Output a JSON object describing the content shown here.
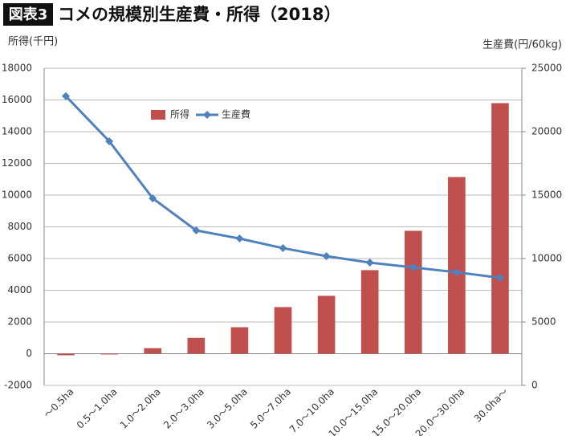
{
  "chart_data": {
    "type": "bar",
    "badge": "図表3",
    "title": "コメの規模別生産費・所得（2018）",
    "y_label": "所得(千円)",
    "y2_label": "生産費(円/60kg)",
    "categories": [
      "〜0.5ha",
      "0.5〜1.0ha",
      "1.0〜2.0ha",
      "2.0〜3.0ha",
      "3.0〜5.0ha",
      "5.0〜7.0ha",
      "7.0〜10.0ha",
      "10.0〜15.0ha",
      "15.0〜20.0ha",
      "20.0〜30.0ha",
      "30.0ha〜"
    ],
    "series": [
      {
        "name": "所得",
        "type": "bar",
        "color": "#c0504d",
        "axis": "y",
        "values": [
          -100,
          -50,
          350,
          1000,
          1670,
          2940,
          3650,
          5270,
          7750,
          11140,
          15800
        ]
      },
      {
        "name": "生産費",
        "type": "line",
        "color": "#4f81bd",
        "axis": "y2",
        "values": [
          22800,
          19240,
          14750,
          12220,
          11580,
          10820,
          10190,
          9680,
          9300,
          8920,
          8480
        ]
      }
    ],
    "ylim": [
      -2000,
      18000
    ],
    "yticks": [
      -2000,
      0,
      2000,
      4000,
      6000,
      8000,
      10000,
      12000,
      14000,
      16000,
      18000
    ],
    "y2lim": [
      0,
      25000
    ],
    "y2ticks": [
      0,
      5000,
      10000,
      15000,
      20000,
      25000
    ],
    "grid": true
  }
}
